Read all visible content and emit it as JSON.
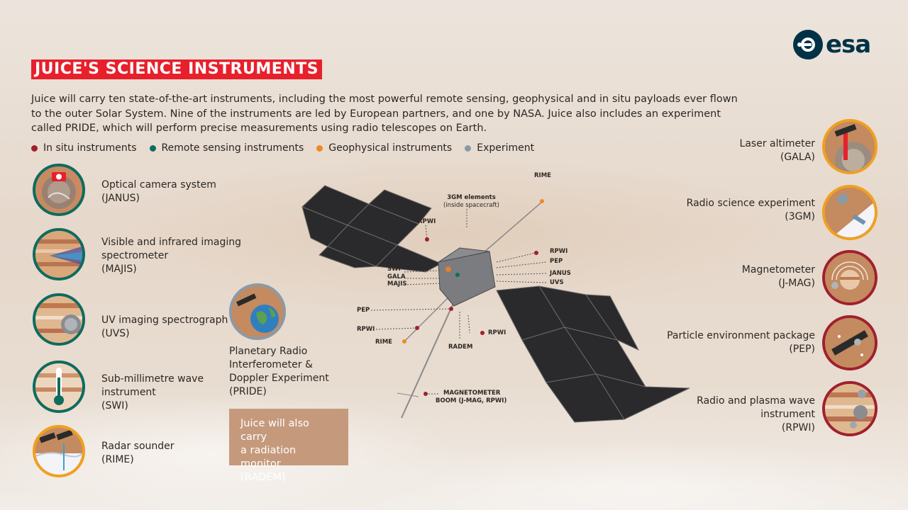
{
  "title": "JUICE'S SCIENCE INSTRUMENTS",
  "intro": "Juice will carry ten state-of-the-art instruments, including the most powerful remote sensing, geophysical and in situ payloads ever flown to the outer Solar System. Nine of the instruments are led by European partners, and one by NASA. Juice also includes an experiment called PRIDE, which will perform precise measurements using radio telescopes on Earth.",
  "logo": "esa",
  "colors": {
    "in_situ": "#a0202e",
    "remote": "#0e6b5f",
    "geophysical": "#f08a20",
    "experiment": "#8a9aa8",
    "title_bg": "#e7202c"
  },
  "legend": [
    {
      "label": "In situ instruments",
      "color": "#a0202e"
    },
    {
      "label": "Remote sensing instruments",
      "color": "#0e6b5f"
    },
    {
      "label": "Geophysical instruments",
      "color": "#f08a20"
    },
    {
      "label": "Experiment",
      "color": "#8a9aa8"
    }
  ],
  "left_instruments": [
    {
      "line1": "Optical camera system",
      "line2": "(JANUS)",
      "line3": "",
      "icon": "camera-icon"
    },
    {
      "line1": "Visible and infrared imaging",
      "line2": "spectrometer",
      "line3": "(MAJIS)",
      "icon": "prism-icon"
    },
    {
      "line1": "UV imaging spectrograph",
      "line2": "(UVS)",
      "line3": "",
      "icon": "planet-icon"
    },
    {
      "line1": "Sub-millimetre wave",
      "line2": "instrument",
      "line3": "(SWI)",
      "icon": "thermometer-icon"
    },
    {
      "line1": "Radar sounder",
      "line2": "(RIME)",
      "line3": "",
      "icon": "radar-icon"
    }
  ],
  "pride": {
    "line1": "Planetary Radio",
    "line2": "Interferometer &",
    "line3": "Doppler Experiment",
    "line4": "(PRIDE)",
    "icon": "earth-icon"
  },
  "radem": {
    "line1": "Juice will also carry",
    "line2": "a radiation monitor",
    "line3": "(RADEM)"
  },
  "right_instruments": [
    {
      "line1": "Laser altimeter",
      "line2": "(GALA)",
      "line3": "",
      "icon": "laser-icon"
    },
    {
      "line1": "Radio science experiment",
      "line2": "(3GM)",
      "line3": "",
      "icon": "radio-icon"
    },
    {
      "line1": "Magnetometer",
      "line2": "(J-MAG)",
      "line3": "",
      "icon": "magnet-icon"
    },
    {
      "line1": "Particle environment package",
      "line2": "(PEP)",
      "line3": "",
      "icon": "particle-icon"
    },
    {
      "line1": "Radio and plasma wave",
      "line2": "instrument",
      "line3": "(RPWI)",
      "icon": "wave-icon"
    }
  ],
  "spacecraft_labels": {
    "rime_top": "RIME",
    "gm3": "3GM elements",
    "gm3_sub": "(inside spacecraft)",
    "rpwi_top": "RPWI",
    "rpwi_right": "RPWI",
    "pep_right": "PEP",
    "janus": "JANUS",
    "uvs": "UVS",
    "swi": "SWI",
    "gala": "GALA",
    "majis": "MAJIS",
    "pep_left": "PEP",
    "rpwi_left": "RPWI",
    "rime_left": "RIME",
    "radem": "RADEM",
    "rpwi_bottom": "RPWI",
    "mag_boom1": "MAGNETOMETER",
    "mag_boom2": "BOOM (J-MAG, RPWI)"
  }
}
